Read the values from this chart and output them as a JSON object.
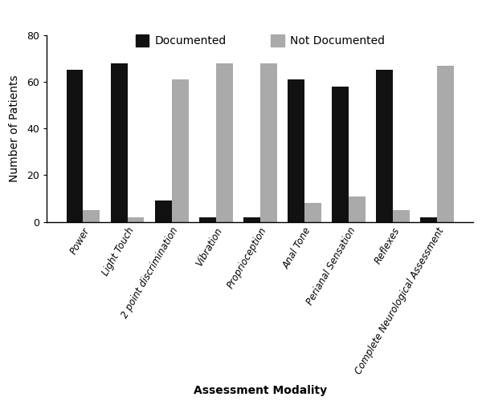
{
  "categories": [
    "Power",
    "Light Touch",
    "2 point discrimination",
    "Vibration",
    "Proprioception",
    "Anal Tone",
    "Perianal Sensation",
    "Reflexes",
    "Complete Neurological Assessment"
  ],
  "documented": [
    65,
    68,
    9,
    2,
    2,
    61,
    58,
    65,
    2
  ],
  "not_documented": [
    5,
    2,
    61,
    68,
    68,
    8,
    11,
    5,
    67
  ],
  "documented_color": "#111111",
  "not_documented_color": "#aaaaaa",
  "ylabel": "Number of Patients",
  "xlabel": "Assessment Modality",
  "ylim": [
    0,
    80
  ],
  "yticks": [
    0,
    20,
    40,
    60,
    80
  ],
  "legend_documented": "Documented",
  "legend_not_documented": "Not Documented",
  "bar_width": 0.38,
  "figsize": [
    6.0,
    5.05
  ],
  "dpi": 100
}
